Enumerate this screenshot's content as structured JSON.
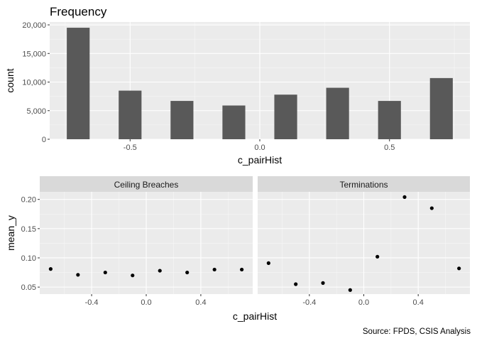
{
  "caption": "Source: FPDS, CSIS Analysis",
  "chart_data": [
    {
      "type": "bar",
      "title": "Frequency",
      "xlabel": "c_pairHist",
      "ylabel": "count",
      "x": [
        -0.7,
        -0.5,
        -0.3,
        -0.1,
        0.1,
        0.3,
        0.5,
        0.7
      ],
      "values": [
        19500,
        8500,
        6700,
        5900,
        7800,
        9000,
        6700,
        10700
      ],
      "xlim": [
        -0.81,
        0.81
      ],
      "ylim": [
        0,
        20500
      ],
      "xticks": [
        -0.5,
        0.0,
        0.5
      ],
      "xtick_labels": [
        "-0.5",
        "0.0",
        "0.5"
      ],
      "yticks": [
        0,
        5000,
        10000,
        15000,
        20000
      ],
      "ytick_labels": [
        "0",
        "5,000",
        "10,000",
        "15,000",
        "20,000"
      ],
      "bar_color": "#595959",
      "grid": true
    },
    {
      "type": "scatter",
      "title": "",
      "xlabel": "c_pairHist",
      "ylabel": "mean_y",
      "facets": [
        {
          "label": "Ceiling Breaches",
          "x": [
            -0.7,
            -0.5,
            -0.3,
            -0.1,
            0.1,
            0.3,
            0.5,
            0.7
          ],
          "y": [
            0.081,
            0.071,
            0.075,
            0.07,
            0.078,
            0.075,
            0.08,
            0.08
          ]
        },
        {
          "label": "Terminations",
          "x": [
            -0.7,
            -0.5,
            -0.3,
            -0.1,
            0.1,
            0.3,
            0.5,
            0.7
          ],
          "y": [
            0.091,
            0.055,
            0.057,
            0.045,
            0.102,
            0.204,
            0.185,
            0.082
          ]
        }
      ],
      "xlim": [
        -0.78,
        0.78
      ],
      "ylim": [
        0.038,
        0.213
      ],
      "xticks": [
        -0.4,
        0.0,
        0.4
      ],
      "xtick_labels": [
        "-0.4",
        "0.0",
        "0.4"
      ],
      "yticks": [
        0.05,
        0.1,
        0.15,
        0.2
      ],
      "ytick_labels": [
        "0.05",
        "0.10",
        "0.15",
        "0.20"
      ],
      "point_color": "#000000",
      "strip_color": "#d9d9d9",
      "grid": true
    }
  ]
}
